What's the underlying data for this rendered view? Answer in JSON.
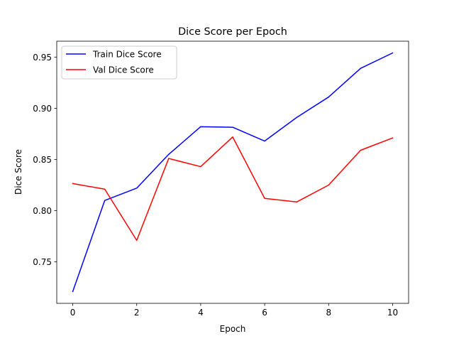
{
  "chart_data": {
    "type": "line",
    "title": "Dice Score per Epoch",
    "xlabel": "Epoch",
    "ylabel": "Dice Score",
    "x": [
      0,
      1,
      2,
      3,
      4,
      5,
      6,
      7,
      8,
      9,
      10
    ],
    "xlim": [
      -0.5,
      10.5
    ],
    "ylim": [
      0.7095,
      0.9655
    ],
    "xticks": [
      0,
      2,
      4,
      6,
      8,
      10
    ],
    "xtick_labels": [
      "0",
      "2",
      "4",
      "6",
      "8",
      "10"
    ],
    "yticks": [
      0.75,
      0.8,
      0.85,
      0.9,
      0.95
    ],
    "ytick_labels": [
      "0.75",
      "0.80",
      "0.85",
      "0.90",
      "0.95"
    ],
    "grid": false,
    "legend_position": "upper-left",
    "series": [
      {
        "name": "Train Dice Score",
        "color": "#0000ff",
        "values": [
          0.721,
          0.81,
          0.822,
          0.855,
          0.882,
          0.8815,
          0.868,
          0.891,
          0.911,
          0.939,
          0.954
        ]
      },
      {
        "name": "Val Dice Score",
        "color": "#ff0000",
        "values": [
          0.8265,
          0.821,
          0.771,
          0.851,
          0.843,
          0.872,
          0.812,
          0.8085,
          0.825,
          0.859,
          0.871
        ]
      }
    ]
  }
}
